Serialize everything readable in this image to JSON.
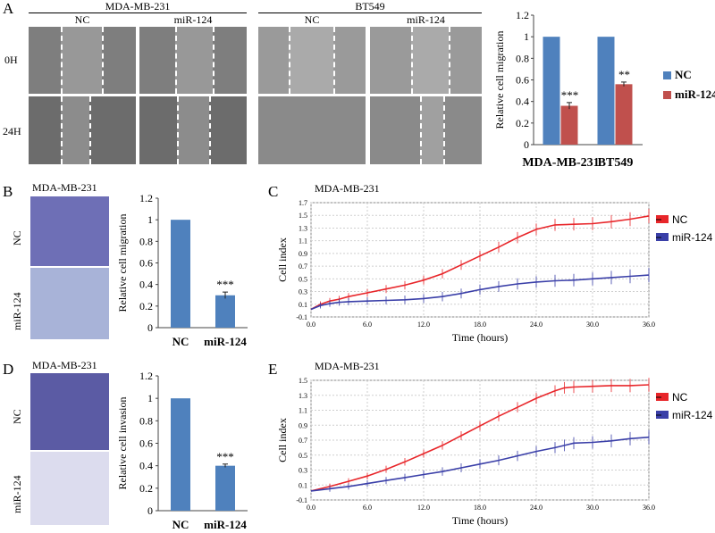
{
  "panel_labels": {
    "a": "A",
    "b": "B",
    "c": "C",
    "d": "D",
    "e": "E"
  },
  "panel_a": {
    "group1_title": "MDA-MB-231",
    "group2_title": "BT549",
    "col_nc": "NC",
    "col_mir": "miR-124",
    "row_0h": "0H",
    "row_24h": "24H"
  },
  "panel_b": {
    "title": "MDA-MB-231",
    "row_nc": "NC",
    "row_mir": "miR-124"
  },
  "panel_c": {
    "title": "MDA-MB-231"
  },
  "panel_d": {
    "title": "MDA-MB-231",
    "row_nc": "NC",
    "row_mir": "miR-124"
  },
  "panel_e": {
    "title": "MDA-MB-231"
  },
  "colors": {
    "nc": "#4f81bd",
    "mir": "#c0504d",
    "rtca_nc": "#e8262a",
    "rtca_mir": "#3a3fa8"
  },
  "chart_data": [
    {
      "id": "A",
      "type": "bar",
      "categories": [
        "MDA-MB-231",
        "BT549"
      ],
      "series": [
        {
          "name": "NC",
          "values": [
            1.0,
            1.0
          ],
          "errors": [
            0,
            0
          ]
        },
        {
          "name": "miR-124",
          "values": [
            0.36,
            0.56
          ],
          "errors": [
            0.03,
            0.02
          ]
        }
      ],
      "annotations": [
        "***",
        "**"
      ],
      "ylabel": "Relative cell migration",
      "xlabel": "",
      "ylim": [
        0,
        1.2
      ],
      "yticks": [
        "0",
        "0.2",
        "0.4",
        "0.6",
        "0.8",
        "1",
        "1.2"
      ],
      "legend": [
        "NC",
        "miR-124"
      ]
    },
    {
      "id": "B",
      "type": "bar",
      "categories": [
        "NC",
        "miR-124"
      ],
      "values": [
        1.0,
        0.3
      ],
      "errors": [
        0,
        0.03
      ],
      "annotations": [
        "",
        "***"
      ],
      "ylabel": "Relative cell migration",
      "ylim": [
        0,
        1.2
      ],
      "yticks": [
        "0",
        "0.2",
        "0.4",
        "0.6",
        "0.8",
        "1",
        "1.2"
      ]
    },
    {
      "id": "D",
      "type": "bar",
      "categories": [
        "NC",
        "miR-124"
      ],
      "values": [
        1.0,
        0.4
      ],
      "errors": [
        0,
        0.015
      ],
      "annotations": [
        "",
        "***"
      ],
      "ylabel": "Relative cell invasion",
      "ylim": [
        0,
        1.2
      ],
      "yticks": [
        "0",
        "0.2",
        "0.4",
        "0.6",
        "0.8",
        "1",
        "1.2"
      ]
    },
    {
      "id": "C",
      "type": "line",
      "xlabel": "Time (hours)",
      "ylabel": "Cell index",
      "xlim": [
        0,
        36
      ],
      "ylim": [
        -0.1,
        1.7
      ],
      "xticks": [
        "0.0",
        "6.0",
        "12.0",
        "18.0",
        "24.0",
        "30.0",
        "36.0"
      ],
      "yticks": [
        "-0.1",
        "0.1",
        "0.3",
        "0.5",
        "0.7",
        "0.9",
        "1.1",
        "1.3",
        "1.5",
        "1.7"
      ],
      "legend": [
        "NC",
        "miR-124"
      ],
      "series": [
        {
          "name": "NC",
          "x": [
            0,
            1,
            2,
            3,
            4,
            6,
            8,
            10,
            12,
            14,
            16,
            18,
            20,
            22,
            24,
            26,
            28,
            30,
            32,
            34,
            36
          ],
          "y": [
            0.02,
            0.1,
            0.15,
            0.18,
            0.22,
            0.28,
            0.34,
            0.4,
            0.48,
            0.58,
            0.72,
            0.86,
            1.0,
            1.15,
            1.28,
            1.35,
            1.36,
            1.37,
            1.4,
            1.44,
            1.49
          ]
        },
        {
          "name": "miR-124",
          "x": [
            0,
            1,
            2,
            3,
            4,
            6,
            8,
            10,
            12,
            14,
            16,
            18,
            20,
            22,
            24,
            26,
            28,
            30,
            32,
            34,
            36
          ],
          "y": [
            0.02,
            0.08,
            0.11,
            0.13,
            0.14,
            0.15,
            0.16,
            0.17,
            0.19,
            0.22,
            0.27,
            0.33,
            0.38,
            0.42,
            0.45,
            0.47,
            0.48,
            0.5,
            0.52,
            0.54,
            0.56
          ]
        }
      ]
    },
    {
      "id": "E",
      "type": "line",
      "xlabel": "Time (hours)",
      "ylabel": "Cell index",
      "xlim": [
        0,
        36
      ],
      "ylim": [
        -0.1,
        1.5
      ],
      "xticks": [
        "0.0",
        "6.0",
        "12.0",
        "18.0",
        "24.0",
        "30.0",
        "36.0"
      ],
      "yticks": [
        "-0.1",
        "0.1",
        "0.3",
        "0.5",
        "0.7",
        "0.9",
        "1.1",
        "1.3",
        "1.5"
      ],
      "legend": [
        "NC",
        "miR-124"
      ],
      "series": [
        {
          "name": "NC",
          "x": [
            0,
            2,
            4,
            6,
            8,
            10,
            12,
            14,
            16,
            18,
            20,
            22,
            24,
            26,
            27,
            28,
            30,
            32,
            34,
            36
          ],
          "y": [
            0.02,
            0.08,
            0.15,
            0.22,
            0.31,
            0.41,
            0.52,
            0.63,
            0.76,
            0.89,
            1.02,
            1.14,
            1.26,
            1.36,
            1.4,
            1.41,
            1.42,
            1.43,
            1.43,
            1.44
          ]
        },
        {
          "name": "miR-124",
          "x": [
            0,
            2,
            4,
            6,
            8,
            10,
            12,
            14,
            16,
            18,
            20,
            22,
            24,
            26,
            27,
            28,
            30,
            32,
            34,
            36
          ],
          "y": [
            0.02,
            0.05,
            0.08,
            0.12,
            0.16,
            0.2,
            0.24,
            0.28,
            0.33,
            0.38,
            0.43,
            0.49,
            0.55,
            0.6,
            0.63,
            0.66,
            0.67,
            0.69,
            0.72,
            0.74
          ]
        }
      ]
    }
  ]
}
